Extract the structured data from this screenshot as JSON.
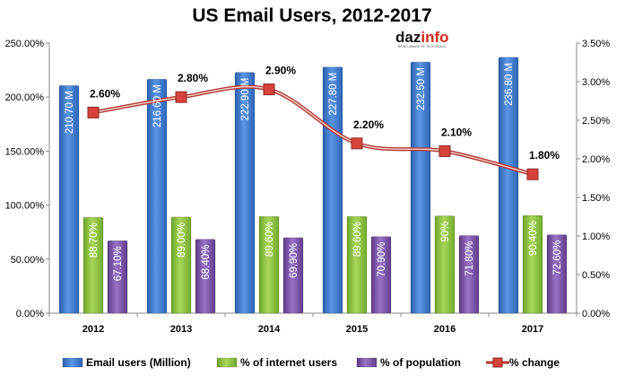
{
  "chart_data": {
    "type": "bar",
    "title": "US Email Users, 2012-2017",
    "categories": [
      "2012",
      "2013",
      "2014",
      "2015",
      "2016",
      "2017"
    ],
    "series": [
      {
        "name": "Email users (Million)",
        "kind": "bar",
        "axis": "left",
        "values": [
          210.7,
          216.6,
          222.9,
          227.8,
          232.5,
          236.8
        ],
        "labels": [
          "210.70 M",
          "216.60 M",
          "222.90 M",
          "227.80 M",
          "232.50 M",
          "236.80 M"
        ],
        "color": "#3e7cd3"
      },
      {
        "name": "% of internet users",
        "kind": "bar",
        "axis": "left",
        "values": [
          88.7,
          89.0,
          89.6,
          89.6,
          90.0,
          90.4
        ],
        "labels": [
          "88.70%",
          "89.00%",
          "89.60%",
          "89.60%",
          "90%",
          "90.40%"
        ],
        "color": "#8fc43c"
      },
      {
        "name": "% of population",
        "kind": "bar",
        "axis": "left",
        "values": [
          67.1,
          68.4,
          69.9,
          70.9,
          71.8,
          72.6
        ],
        "labels": [
          "67.10%",
          "68.40%",
          "69.90%",
          "70.90%",
          "71.80%",
          "72.60%"
        ],
        "color": "#7a4fa6"
      },
      {
        "name": "% change",
        "kind": "line",
        "axis": "right",
        "values": [
          2.6,
          2.8,
          2.9,
          2.2,
          2.1,
          1.8
        ],
        "labels": [
          "2.60%",
          "2.80%",
          "2.90%",
          "2.20%",
          "2.10%",
          "1.80%"
        ],
        "color": "#c0403a"
      }
    ],
    "y_left": {
      "lim": [
        0,
        250
      ],
      "ticks": [
        "0.00%",
        "50.00%",
        "100.00%",
        "150.00%",
        "200.00%",
        "250.00%"
      ]
    },
    "y_right": {
      "lim": [
        0,
        3.5
      ],
      "ticks": [
        "0.00%",
        "0.50%",
        "1.00%",
        "1.50%",
        "2.00%",
        "2.50%",
        "3.00%",
        "3.50%"
      ]
    },
    "grid": false,
    "legend": "bottom"
  },
  "logo": {
    "part_a": "daz",
    "part_b": "info",
    "tagline": "BEING AWARE OF TECH DEALS"
  }
}
